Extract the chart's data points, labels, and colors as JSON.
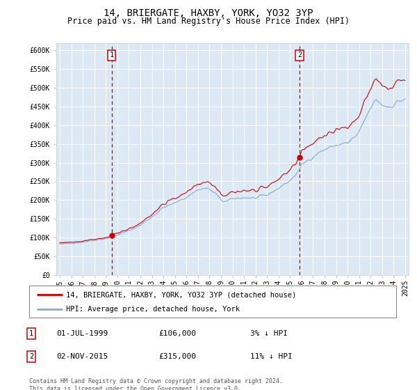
{
  "title": "14, BRIERGATE, HAXBY, YORK, YO32 3YP",
  "subtitle": "Price paid vs. HM Land Registry's House Price Index (HPI)",
  "title_fontsize": 10,
  "subtitle_fontsize": 8.5,
  "background_color": "#ffffff",
  "plot_bg_color": "#dce9f5",
  "grid_color": "#ffffff",
  "ylim": [
    0,
    620000
  ],
  "yticks": [
    0,
    50000,
    100000,
    150000,
    200000,
    250000,
    300000,
    350000,
    400000,
    450000,
    500000,
    550000,
    600000
  ],
  "ytick_labels": [
    "£0",
    "£50K",
    "£100K",
    "£150K",
    "£200K",
    "£250K",
    "£300K",
    "£350K",
    "£400K",
    "£450K",
    "£500K",
    "£550K",
    "£600K"
  ],
  "xlim_start": 1994.7,
  "xlim_end": 2025.3,
  "xtick_years": [
    1995,
    1996,
    1997,
    1998,
    1999,
    2000,
    2001,
    2002,
    2003,
    2004,
    2005,
    2006,
    2007,
    2008,
    2009,
    2010,
    2011,
    2012,
    2013,
    2014,
    2015,
    2016,
    2017,
    2018,
    2019,
    2020,
    2021,
    2022,
    2023,
    2024,
    2025
  ],
  "property_color": "#cc0000",
  "hpi_color": "#88aacc",
  "sale1_year": 1999.5,
  "sale1_price": 106000,
  "sale2_year": 2015.83,
  "sale2_price": 315000,
  "vline_color": "#cc0000",
  "legend_label_property": "14, BRIERGATE, HAXBY, YORK, YO32 3YP (detached house)",
  "legend_label_hpi": "HPI: Average price, detached house, York",
  "sale_details": [
    {
      "num": "1",
      "date": "01-JUL-1999",
      "price": "£106,000",
      "pct": "3% ↓ HPI"
    },
    {
      "num": "2",
      "date": "02-NOV-2015",
      "price": "£315,000",
      "pct": "11% ↓ HPI"
    }
  ],
  "footer": "Contains HM Land Registry data © Crown copyright and database right 2024.\nThis data is licensed under the Open Government Licence v3.0."
}
